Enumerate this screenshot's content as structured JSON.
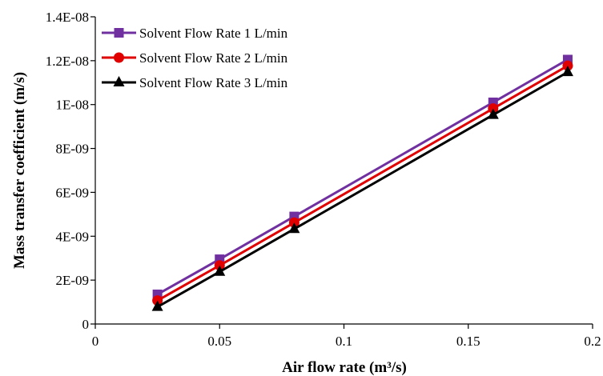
{
  "chart_data": {
    "type": "line",
    "title": "",
    "xlabel": "Air flow rate (m³/s)",
    "ylabel": "Mass transfer coefficient (m/s)",
    "xlim": [
      0,
      0.2
    ],
    "ylim": [
      0,
      1.4e-08
    ],
    "xticks": [
      0,
      0.05,
      0.1,
      0.15,
      0.2
    ],
    "xtick_labels": [
      "0",
      "0.05",
      "0.1",
      "0.15",
      "0.2"
    ],
    "yticks": [
      0,
      2e-09,
      4e-09,
      6e-09,
      8e-09,
      1e-08,
      1.2e-08,
      1.4e-08
    ],
    "ytick_labels": [
      "0",
      "2E-09",
      "4E-09",
      "6E-09",
      "8E-09",
      "1E-08",
      "1.2E-08",
      "1.4E-08"
    ],
    "grid": false,
    "legend_position": "top-left",
    "x": [
      0.025,
      0.05,
      0.08,
      0.16,
      0.19
    ],
    "series": [
      {
        "name": "Solvent Flow Rate 1 L/min",
        "color": "#7030A0",
        "marker": "square",
        "values": [
          1.35e-09,
          2.95e-09,
          4.9e-09,
          1.01e-08,
          1.205e-08
        ]
      },
      {
        "name": "Solvent Flow Rate 2 L/min",
        "color": "#E00000",
        "marker": "circle",
        "values": [
          1.07e-09,
          2.67e-09,
          4.62e-09,
          9.82e-09,
          1.177e-08
        ]
      },
      {
        "name": "Solvent Flow Rate 3 L/min",
        "color": "#000000",
        "marker": "triangle",
        "values": [
          7.8e-10,
          2.38e-09,
          4.33e-09,
          9.53e-09,
          1.148e-08
        ]
      }
    ]
  }
}
